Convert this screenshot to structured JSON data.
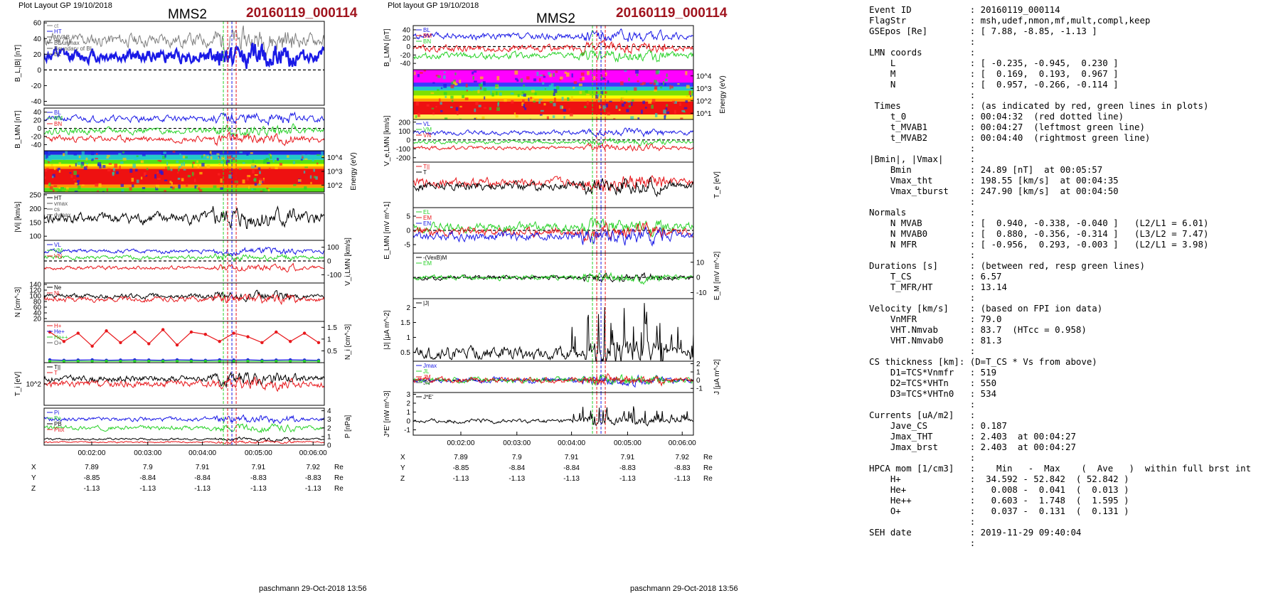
{
  "left": {
    "header": "Plot Layout GP 19/10/2018",
    "title": "MMS2",
    "event": "20160119_000114",
    "footer": "paschmann 29-Oct-2018 13:56",
    "time_ticks": [
      "00:02:00",
      "00:03:00",
      "00:04:00",
      "00:05:00",
      "00:06:00"
    ],
    "coords": {
      "unit": "Re",
      "rows": [
        {
          "name": "X",
          "values": [
            "7.89",
            "7.9",
            "7.91",
            "7.91",
            "7.92"
          ]
        },
        {
          "name": "Y",
          "values": [
            "-8.85",
            "-8.84",
            "-8.84",
            "-8.83",
            "-8.83"
          ]
        },
        {
          "name": "Z",
          "values": [
            "-1.13",
            "-1.13",
            "-1.13",
            "-1.13",
            "-1.13"
          ]
        }
      ]
    }
  },
  "mid": {
    "header": "Plot layout GP 19/10/2018",
    "title": "MMS2",
    "event": "20160119_000114",
    "footer": "paschmann 29-Oct-2018 13:56",
    "time_ticks": [
      "00:02:00",
      "00:03:00",
      "00:04:00",
      "00:05:00",
      "00:06:00"
    ],
    "coords": {
      "unit": "Re",
      "rows": [
        {
          "name": "X",
          "values": [
            "7.89",
            "7.9",
            "7.91",
            "7.91",
            "7.92"
          ]
        },
        {
          "name": "Y",
          "values": [
            "-8.85",
            "-8.84",
            "-8.84",
            "-8.83",
            "-8.83"
          ]
        },
        {
          "name": "Z",
          "values": [
            "-1.13",
            "-1.13",
            "-1.13",
            "-1.13",
            "-1.13"
          ]
        }
      ]
    }
  },
  "colors": {
    "red": "#e8181c",
    "green": "#2ad22a",
    "blue": "#1a1ae6",
    "black": "#000000",
    "gray": "#7f7f7f",
    "magenta": "#ff22ff",
    "event": "#a0141e"
  },
  "summary_lines": [
    "Event ID           : 20160119_000114",
    "FlagStr            : msh,udef,nmon,mf,mult,compl,keep",
    "GSEpos [Re]        : [ 7.88, -8.85, -1.13 ]",
    "                   :",
    "LMN coords         :",
    "    L              : [ -0.235, -0.945,  0.230 ]",
    "    M              : [  0.169,  0.193,  0.967 ]",
    "    N              : [  0.957, -0.266, -0.114 ]",
    "                   :",
    " Times             : (as indicated by red, green lines in plots)",
    "    t_0            : 00:04:32  (red dotted line)",
    "    t_MVAB1        : 00:04:27  (leftmost green line)",
    "    t_MVAB2        : 00:04:40  (rightmost green line)",
    "                   :",
    "|Bmin|, |Vmax|     :",
    "    Bmin           : 24.89 [nT]  at 00:05:57",
    "    Vmax_tht       : 198.55 [km/s]  at 00:04:35",
    "    Vmax_tburst    : 247.90 [km/s]  at 00:04:50",
    "                   :",
    "Normals            :",
    "    N MVAB         : [  0.940, -0.338, -0.040 ]   (L2/L1 = 6.01)",
    "    N MVAB0        : [  0.880, -0.356, -0.314 ]   (L3/L2 = 7.47)",
    "    N MFR          : [ -0.956,  0.293, -0.003 ]   (L2/L1 = 3.98)",
    "                   :",
    "Durations [s]      : (between red, resp green lines)",
    "    T_CS           : 6.57",
    "    T_MFR/HT       : 13.14",
    "                   :",
    "Velocity [km/s]    : (based on FPI ion data)",
    "    VnMFR          : 79.0",
    "    VHT.Nmvab      : 83.7  (HTcc = 0.958)",
    "    VHT.Nmvab0     : 81.3",
    "                   :",
    "CS thickness [km]: (D=T_CS * Vs from above)",
    "    D1=TCS*Vnmfr   : 519",
    "    D2=TCS*VHTn    : 550",
    "    D3=TCS*VHTn0   : 534",
    "                   :",
    "Currents [uA/m2]   :",
    "    Jave_CS        : 0.187",
    "    Jmax_THT       : 2.403  at 00:04:27",
    "    Jmax_brst      : 2.403  at 00:04:27",
    "                   :",
    "HPCA mom [1/cm3]   :    Min   -  Max    (  Ave   )  within full brst int",
    "    H+             :  34.592 - 52.842  ( 52.842 )",
    "    He+            :   0.008 -  0.041  (  0.013 )",
    "    He++           :   0.603 -  1.748  (  1.595 )",
    "    O+             :   0.037 -  0.131  (  0.131 )",
    "                   :",
    "SEH date           : 2019-11-29 09:40:04",
    "                   :"
  ],
  "chart_data": [
    {
      "type": "line",
      "id": "L1",
      "ylabel": "B_L,|B| [nT]",
      "yticks": [
        60,
        40,
        20,
        0,
        -20,
        -40
      ],
      "ylim": [
        -45,
        62
      ],
      "zero_line": true,
      "legend": [
        "ct",
        "HT",
        "MVAB",
        "BL unmax",
        "Boundary of BL",
        "BL"
      ],
      "series": [
        {
          "color": "gray",
          "base": 38,
          "amp": 9,
          "seed": 11,
          "width": 1
        },
        {
          "color": "blue",
          "base": 18,
          "amp": 9,
          "seed": 12,
          "width": 2.4
        }
      ]
    },
    {
      "type": "line",
      "id": "L2",
      "ylabel": "B_LMN [nT]",
      "yticks": [
        40,
        20,
        0,
        -20,
        -40
      ],
      "ylim": [
        -55,
        50
      ],
      "zero_line": true,
      "legend": [
        "BL",
        "BM",
        "BN"
      ],
      "series": [
        {
          "color": "blue",
          "base": 24,
          "amp": 8,
          "seed": 21
        },
        {
          "color": "green",
          "base": -6,
          "amp": 8,
          "seed": 22
        },
        {
          "color": "red",
          "base": -26,
          "amp": 8,
          "seed": 23
        }
      ]
    },
    {
      "type": "heatmap",
      "id": "L3",
      "ylabel": "Energy (eV)",
      "ylabel_side": "right",
      "yticks": [
        "10^4",
        "10^3",
        "10^2"
      ]
    },
    {
      "type": "line",
      "id": "L4",
      "ylabel": "|Vi| [km/s]",
      "yticks": [
        250,
        200,
        150,
        100
      ],
      "ylim": [
        85,
        255
      ],
      "legend": [
        "HT",
        "vmax",
        "cs",
        "dvmax"
      ],
      "series": [
        {
          "color": "black",
          "base": 165,
          "amp": 22,
          "seed": 41
        }
      ]
    },
    {
      "type": "line",
      "id": "L5",
      "ylabel": "V_i,LMN [km/s]",
      "ylabel_side": "right",
      "yticks": [
        100,
        0,
        -100
      ],
      "ylim": [
        -160,
        150
      ],
      "zero_line": true,
      "legend": [
        "VL",
        "VM",
        "VN"
      ],
      "series": [
        {
          "color": "blue",
          "base": 70,
          "amp": 15,
          "seed": 51
        },
        {
          "color": "green",
          "base": 25,
          "amp": 15,
          "seed": 52
        },
        {
          "color": "red",
          "base": -50,
          "amp": 14,
          "seed": 53
        }
      ]
    },
    {
      "type": "line",
      "id": "L6",
      "ylabel": "N [cm^-3]",
      "yticks": [
        140,
        120,
        100,
        80,
        60,
        40,
        20
      ],
      "ylim": [
        10,
        145
      ],
      "legend": [
        "Ne",
        "Ni"
      ],
      "series": [
        {
          "color": "black",
          "base": 98,
          "amp": 9,
          "seed": 61
        },
        {
          "color": "red",
          "base": 88,
          "amp": 9,
          "seed": 62
        }
      ]
    },
    {
      "type": "scatter",
      "id": "L7",
      "ylabel": "N_i [cm^-3]",
      "ylabel_side": "right",
      "yticks": [
        1.5,
        1.0,
        0.5
      ],
      "ylim": [
        0,
        1.75
      ],
      "legend": [
        "H+",
        "He+",
        "He++",
        "O+"
      ],
      "series": [
        {
          "color": "red",
          "values": [
            1.3,
            0.9,
            1.25,
            0.7,
            1.35,
            0.85,
            1.3,
            0.8,
            1.4,
            0.75,
            1.3,
            1.2,
            0.9,
            1.25,
            1.1,
            0.85,
            1.3,
            0.9,
            1.25,
            0.85
          ]
        },
        {
          "color": "blue",
          "values": [
            0.12,
            0.1,
            0.11,
            0.12,
            0.1,
            0.11,
            0.12,
            0.11,
            0.1,
            0.12,
            0.11,
            0.1,
            0.12,
            0.11,
            0.12,
            0.1,
            0.11,
            0.12,
            0.11,
            0.1
          ]
        },
        {
          "color": "green",
          "values": [
            0.06,
            0.06,
            0.06,
            0.06,
            0.06,
            0.06,
            0.06,
            0.06,
            0.06,
            0.06,
            0.06,
            0.06,
            0.06,
            0.06,
            0.06,
            0.06,
            0.06,
            0.06,
            0.06,
            0.06
          ]
        }
      ]
    },
    {
      "type": "line",
      "id": "L8",
      "ylabel": "T_i [eV]",
      "yticks": [
        "10^2"
      ],
      "ylim": [
        0,
        100
      ],
      "legend": [
        "T||",
        "T"
      ],
      "series": [
        {
          "color": "black",
          "base": 62,
          "amp": 8,
          "seed": 81
        },
        {
          "color": "red",
          "base": 50,
          "amp": 8,
          "seed": 82
        }
      ]
    },
    {
      "type": "line",
      "id": "L9",
      "ylabel": "P [nPa]",
      "ylabel_side": "right",
      "yticks": [
        4,
        3,
        2,
        1,
        0
      ],
      "ylim": [
        0,
        4.3
      ],
      "legend": [
        "Pi",
        "Pe",
        "PB",
        "Ptot"
      ],
      "series": [
        {
          "color": "blue",
          "base": 3.0,
          "amp": 0.25,
          "seed": 91
        },
        {
          "color": "green",
          "base": 2.0,
          "amp": 0.25,
          "seed": 92
        },
        {
          "color": "black",
          "base": 0.7,
          "amp": 0.12,
          "seed": 93
        },
        {
          "color": "red",
          "base": 0.35,
          "amp": 0.1,
          "seed": 94
        }
      ]
    },
    {
      "type": "line",
      "id": "M1",
      "ylabel": "B_LMN [nT]",
      "yticks": [
        40,
        20,
        0,
        -20,
        -40
      ],
      "ylim": [
        -55,
        50
      ],
      "zero_line": true,
      "legend": [
        "BL",
        "BM",
        "BN"
      ],
      "series": [
        {
          "color": "blue",
          "base": 24,
          "amp": 8,
          "seed": 111
        },
        {
          "color": "red",
          "base": -4,
          "amp": 8,
          "seed": 112
        },
        {
          "color": "green",
          "base": -22,
          "amp": 8,
          "seed": 113
        }
      ]
    },
    {
      "type": "heatmap",
      "id": "M2",
      "ylabel": "Energy (eV)",
      "ylabel_side": "right",
      "yticks": [
        "10^4",
        "10^3",
        "10^2",
        "10^1"
      ]
    },
    {
      "type": "line",
      "id": "M3",
      "ylabel": "V_e,LMN [km/s]",
      "yticks": [
        200,
        100,
        0,
        -100,
        -200
      ],
      "ylim": [
        -250,
        230
      ],
      "zero_line": true,
      "legend": [
        "VL",
        "VM",
        "VN"
      ],
      "series": [
        {
          "color": "blue",
          "base": 80,
          "amp": 25,
          "seed": 131
        },
        {
          "color": "green",
          "base": -25,
          "amp": 20,
          "seed": 132
        },
        {
          "color": "red",
          "base": -90,
          "amp": 22,
          "seed": 133
        }
      ]
    },
    {
      "type": "line",
      "id": "M4",
      "ylabel": "T_e [eV]",
      "ylabel_side": "right",
      "yticks": [],
      "ylim": [
        0,
        100
      ],
      "legend": [
        "T||",
        "T"
      ],
      "series": [
        {
          "color": "red",
          "base": 55,
          "amp": 10,
          "seed": 141
        },
        {
          "color": "black",
          "base": 48,
          "amp": 10,
          "seed": 142
        }
      ]
    },
    {
      "type": "line",
      "id": "M5",
      "ylabel": "E_LMN [mV m^-1]",
      "yticks": [
        5,
        0,
        -5
      ],
      "ylim": [
        -8,
        8
      ],
      "zero_line": true,
      "legend": [
        "EL",
        "EM",
        "EN"
      ],
      "series": [
        {
          "color": "green",
          "base": 1,
          "amp": 1.6,
          "seed": 151
        },
        {
          "color": "red",
          "base": -0.5,
          "amp": 1.6,
          "seed": 152
        },
        {
          "color": "blue",
          "base": -2,
          "amp": 1.6,
          "seed": 153
        }
      ]
    },
    {
      "type": "line",
      "id": "M6",
      "ylabel": "E_M [mV m^-2]",
      "ylabel_side": "right",
      "yticks": [
        10,
        0,
        -10
      ],
      "ylim": [
        -14,
        16
      ],
      "zero_line": true,
      "legend": [
        "-(VexB)M",
        "EM"
      ],
      "series": [
        {
          "color": "black",
          "base": 0,
          "amp": 1.5,
          "seed": 161
        },
        {
          "color": "green",
          "base": 0,
          "amp": 1.8,
          "seed": 162
        }
      ]
    },
    {
      "type": "line",
      "id": "M7",
      "ylabel": "|J| [μA m^-2]",
      "yticks": [
        2.0,
        1.5,
        1.0,
        0.5
      ],
      "ylim": [
        0.2,
        2.3
      ],
      "legend": [
        "|J|"
      ],
      "series": [
        {
          "color": "black",
          "base": 0.45,
          "amp": 0.22,
          "seed": 171,
          "spiky": true
        }
      ]
    },
    {
      "type": "line",
      "id": "M8",
      "ylabel": "J [μA m^-2]",
      "ylabel_side": "right",
      "yticks": [
        2,
        1,
        0,
        -1
      ],
      "ylim": [
        -1.5,
        2.3
      ],
      "zero_line": true,
      "legend": [
        "Jmax",
        "JL",
        "JM",
        "JN"
      ],
      "series": [
        {
          "color": "blue",
          "base": 0,
          "amp": 0.35,
          "seed": 181
        },
        {
          "color": "green",
          "base": 0,
          "amp": 0.35,
          "seed": 182
        },
        {
          "color": "red",
          "base": 0,
          "amp": 0.35,
          "seed": 183
        }
      ]
    },
    {
      "type": "line",
      "id": "M9",
      "ylabel": "J*E' [nW m^-3]",
      "yticks": [
        3,
        2,
        1,
        0,
        -1
      ],
      "ylim": [
        -1.6,
        3.2
      ],
      "zero_line": false,
      "legend": [
        "J*E'"
      ],
      "series": [
        {
          "color": "black",
          "base": 0,
          "amp": 0.25,
          "seed": 191,
          "spiky": true
        }
      ]
    }
  ]
}
